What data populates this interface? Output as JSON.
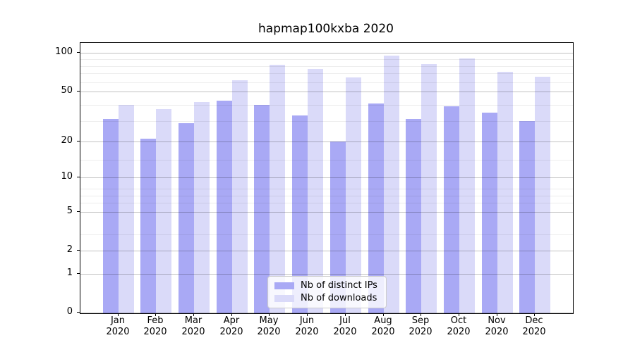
{
  "title": "hapmap100kxba 2020",
  "chart_data": {
    "type": "bar",
    "title": "hapmap100kxba 2020",
    "categories": [
      "Jan 2020",
      "Feb 2020",
      "Mar 2020",
      "Apr 2020",
      "May 2020",
      "Jun 2020",
      "Jul 2020",
      "Aug 2020",
      "Sep 2020",
      "Oct 2020",
      "Nov 2020",
      "Dec 2020"
    ],
    "series": [
      {
        "name": "Nb of distinct IPs",
        "color": "#a9a9f5",
        "values": [
          30,
          21,
          28,
          42,
          39,
          32,
          20,
          40,
          30,
          38,
          34,
          29
        ]
      },
      {
        "name": "Nb of downloads",
        "color": "#dadaf9",
        "values": [
          39,
          36,
          41,
          61,
          81,
          75,
          64,
          95,
          82,
          90,
          71,
          65
        ]
      }
    ],
    "xlabel": "",
    "ylabel": "",
    "y_scale": "log10(value+1)",
    "ylim": [
      0,
      101
    ],
    "y_major_ticks": [
      100,
      50,
      20,
      10,
      5,
      2,
      1,
      0
    ],
    "y_minor_ticks": [
      3,
      6,
      7,
      8,
      14,
      29,
      39,
      59,
      69,
      79,
      89
    ],
    "grid": "major and minor horizontal gridlines, drawn above bars",
    "legend_position": "lower center inside plot"
  }
}
